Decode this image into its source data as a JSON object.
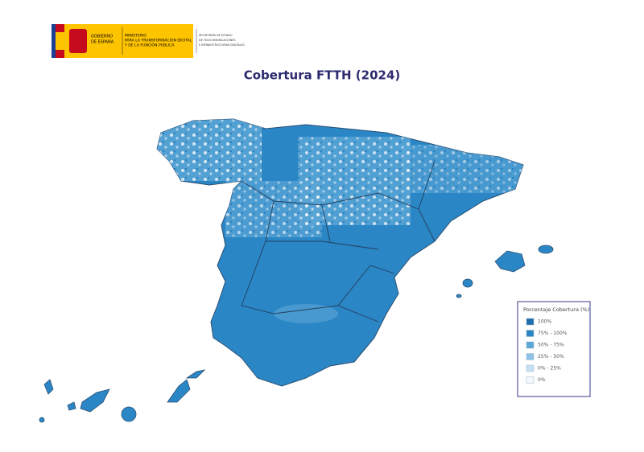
{
  "header": {
    "gobierno": [
      "GOBIERNO",
      "DE ESPAÑA"
    ],
    "ministerio": [
      "MINISTERIO",
      "PARA LA TRANSFORMACIÓN DIGITAL",
      "Y DE LA FUNCIÓN PÚBLICA"
    ],
    "secretaria": [
      "SECRETARÍA DE ESTADO",
      "DE TELECOMUNICACIONES",
      "E INFRAESTRUCTURAS DIGITALES"
    ]
  },
  "title": "Cobertura FTTH (2024)",
  "legend": {
    "title": "Porcentaje Cobertura (%)",
    "items": [
      {
        "label": "100%",
        "color": "#1f6fae"
      },
      {
        "label": "75% - 100%",
        "color": "#2b86c5"
      },
      {
        "label": "50% - 75%",
        "color": "#5aa6d6"
      },
      {
        "label": "25% - 50%",
        "color": "#8fc3e6"
      },
      {
        "label": "0% - 25%",
        "color": "#c6e0f3"
      },
      {
        "label": "0%",
        "color": "#f4f8fc"
      }
    ]
  }
}
